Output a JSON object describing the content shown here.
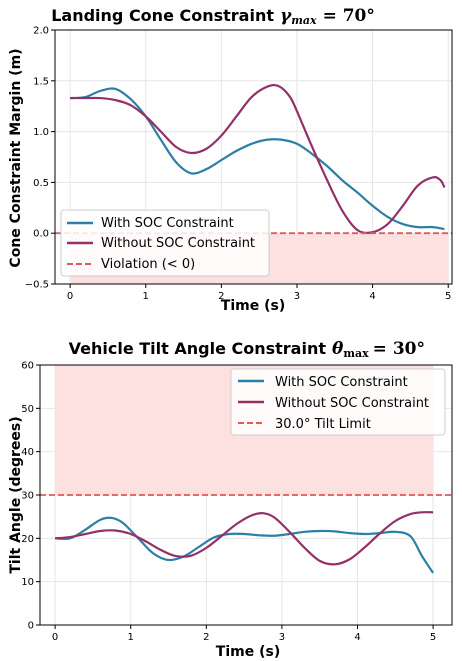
{
  "chart_data": [
    {
      "type": "line",
      "title": "Landing Cone Constraint",
      "title_math": {
        "symbol": "γ",
        "subscript": "max",
        "value": "=  70°"
      },
      "xlabel": "Time (s)",
      "ylabel": "Cone Constraint Margin (m)",
      "xlim": [
        -0.2,
        5.05
      ],
      "ylim": [
        -0.5,
        2.0
      ],
      "xticks": [
        0,
        1,
        2,
        3,
        4,
        5
      ],
      "yticks": [
        -0.5,
        0.0,
        0.5,
        1.0,
        1.5,
        2.0
      ],
      "ytick_labels": [
        "−0.5",
        "0.0",
        "0.5",
        "1.0",
        "1.5",
        "2.0"
      ],
      "grid": true,
      "legend_position": "lower-left",
      "violation_region": {
        "from": -0.5,
        "to": 0.0,
        "color": "#fde0e0"
      },
      "reference_line": {
        "y": 0.0,
        "color": "#e05a5a",
        "label": "Violation (< 0)"
      },
      "series": [
        {
          "name": "With SOC Constraint",
          "color": "#2e7fa6",
          "x": [
            0.0,
            0.2,
            0.4,
            0.6,
            0.8,
            1.0,
            1.2,
            1.4,
            1.6,
            1.8,
            2.0,
            2.2,
            2.4,
            2.6,
            2.8,
            3.0,
            3.2,
            3.4,
            3.6,
            3.8,
            4.0,
            4.2,
            4.4,
            4.6,
            4.8,
            4.95
          ],
          "y": [
            1.33,
            1.34,
            1.4,
            1.42,
            1.32,
            1.15,
            0.92,
            0.7,
            0.59,
            0.63,
            0.72,
            0.81,
            0.88,
            0.92,
            0.92,
            0.88,
            0.78,
            0.66,
            0.52,
            0.4,
            0.27,
            0.16,
            0.09,
            0.06,
            0.06,
            0.04
          ]
        },
        {
          "name": "Without SOC Constraint",
          "color": "#943068",
          "x": [
            0.0,
            0.2,
            0.4,
            0.6,
            0.8,
            1.0,
            1.2,
            1.4,
            1.6,
            1.8,
            2.0,
            2.2,
            2.4,
            2.6,
            2.75,
            2.9,
            3.0,
            3.2,
            3.4,
            3.6,
            3.8,
            4.0,
            4.2,
            4.4,
            4.6,
            4.8,
            4.9,
            4.95
          ],
          "y": [
            1.33,
            1.33,
            1.33,
            1.31,
            1.26,
            1.15,
            1.0,
            0.85,
            0.79,
            0.83,
            0.96,
            1.15,
            1.34,
            1.44,
            1.45,
            1.35,
            1.2,
            0.85,
            0.52,
            0.22,
            0.03,
            0.01,
            0.09,
            0.27,
            0.47,
            0.55,
            0.52,
            0.45
          ]
        }
      ]
    },
    {
      "type": "line",
      "title": "Vehicle Tilt Angle Constraint",
      "title_math": {
        "symbol": "θ",
        "subscript": "max",
        "value": "= 30°"
      },
      "xlabel": "Time (s)",
      "ylabel": "Tilt Angle (degrees)",
      "xlim": [
        -0.2,
        5.25
      ],
      "ylim": [
        0,
        60
      ],
      "xticks": [
        0,
        1,
        2,
        3,
        4,
        5
      ],
      "yticks": [
        0,
        10,
        20,
        30,
        40,
        50,
        60
      ],
      "ytick_labels": [
        "0",
        "10",
        "20",
        "30",
        "40",
        "50",
        "60"
      ],
      "grid": true,
      "legend_position": "upper-right",
      "violation_region": {
        "from": 30,
        "to": 60,
        "color": "#fde0e0"
      },
      "reference_line": {
        "y": 30,
        "color": "#e05a5a",
        "label": "30.0° Tilt Limit"
      },
      "series": [
        {
          "name": "With SOC Constraint",
          "color": "#2e7fa6",
          "x": [
            0.0,
            0.2,
            0.4,
            0.6,
            0.75,
            0.9,
            1.1,
            1.3,
            1.5,
            1.7,
            1.9,
            2.1,
            2.3,
            2.5,
            2.7,
            2.9,
            3.1,
            3.3,
            3.5,
            3.7,
            3.9,
            4.1,
            4.3,
            4.5,
            4.7,
            4.85,
            5.0
          ],
          "y": [
            20.0,
            20.0,
            22.0,
            24.3,
            24.7,
            23.5,
            20.0,
            16.5,
            15.0,
            15.8,
            18.0,
            20.2,
            21.0,
            21.0,
            20.7,
            20.6,
            21.0,
            21.5,
            21.7,
            21.6,
            21.2,
            21.0,
            21.2,
            21.5,
            20.5,
            16.0,
            12.0
          ]
        },
        {
          "name": "Without SOC Constraint",
          "color": "#943068",
          "x": [
            0.0,
            0.2,
            0.4,
            0.6,
            0.8,
            1.0,
            1.2,
            1.4,
            1.6,
            1.8,
            2.0,
            2.2,
            2.4,
            2.6,
            2.75,
            2.9,
            3.1,
            3.3,
            3.5,
            3.7,
            3.9,
            4.1,
            4.3,
            4.5,
            4.7,
            4.85,
            5.0
          ],
          "y": [
            20.0,
            20.3,
            21.0,
            21.7,
            21.8,
            21.0,
            19.3,
            17.3,
            15.9,
            16.0,
            17.8,
            20.5,
            23.3,
            25.3,
            25.8,
            24.8,
            21.5,
            17.8,
            14.8,
            14.0,
            15.2,
            18.0,
            21.2,
            24.0,
            25.6,
            26.0,
            26.0
          ]
        }
      ]
    }
  ]
}
